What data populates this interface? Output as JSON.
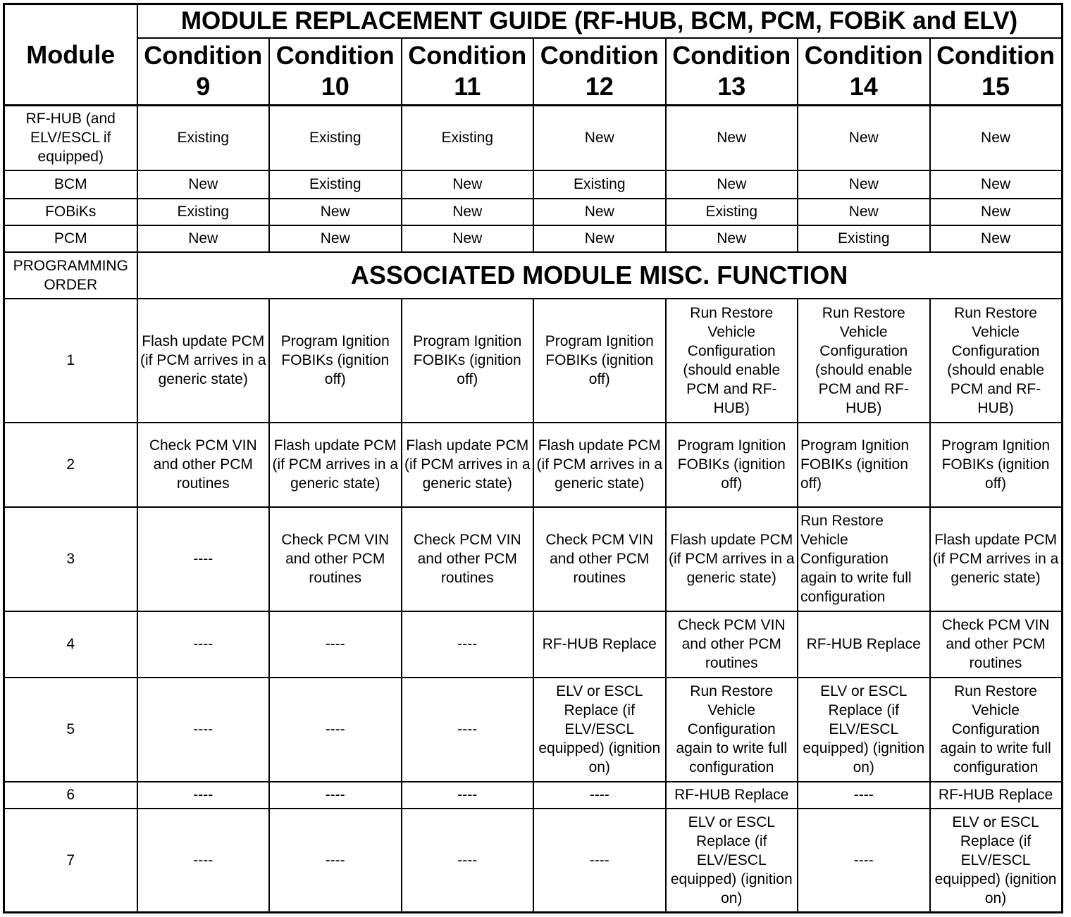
{
  "header": {
    "module_label": "Module",
    "title": "MODULE REPLACEMENT GUIDE (RF-HUB, BCM, PCM, FOBiK and ELV)",
    "conditions": [
      "Condition 9",
      "Condition 10",
      "Condition 11",
      "Condition 12",
      "Condition 13",
      "Condition 14",
      "Condition 15"
    ]
  },
  "modules": [
    {
      "name": "RF-HUB (and ELV/ESCL if equipped)",
      "values": [
        "Existing",
        "Existing",
        "Existing",
        "New",
        "New",
        "New",
        "New"
      ]
    },
    {
      "name": "BCM",
      "values": [
        "New",
        "Existing",
        "New",
        "Existing",
        "New",
        "New",
        "New"
      ]
    },
    {
      "name": "FOBiKs",
      "values": [
        "Existing",
        "New",
        "New",
        "New",
        "Existing",
        "New",
        "New"
      ]
    },
    {
      "name": "PCM",
      "values": [
        "New",
        "New",
        "New",
        "New",
        "New",
        "Existing",
        "New"
      ]
    }
  ],
  "programming_order_label": "PROGRAMMING ORDER",
  "section_title": "ASSOCIATED MODULE MISC. FUNCTION",
  "steps": [
    {
      "order": "1",
      "values": [
        "Flash update PCM (if PCM arrives in a generic state)",
        "Program Ignition FOBIKs (ignition off)",
        "Program Ignition FOBIKs (ignition off)",
        "Program Ignition FOBIKs (ignition off)",
        "Run Restore Vehicle Configuration (should enable PCM and RF-HUB)",
        "Run Restore Vehicle Configuration (should enable PCM and RF-HUB)",
        "Run Restore Vehicle Configuration (should enable PCM and RF-HUB)"
      ]
    },
    {
      "order": "2",
      "values": [
        "Check PCM VIN and other PCM routines",
        "Flash update PCM (if PCM arrives in a generic state)",
        "Flash update PCM (if PCM arrives in a generic state)",
        "Flash update PCM (if PCM arrives in a generic state)",
        "Program Ignition FOBIKs (ignition off)",
        "Program Ignition FOBIKs (ignition off)",
        "Program Ignition FOBIKs (ignition off)"
      ]
    },
    {
      "order": "3",
      "values": [
        "----",
        "Check PCM VIN and other PCM routines",
        "Check PCM VIN and other PCM routines",
        "Check PCM VIN and other PCM routines",
        "Flash update PCM (if PCM arrives in a generic state)",
        "Run Restore Vehicle Configuration again to write full configuration",
        "Flash update PCM (if PCM arrives in a generic state)"
      ]
    },
    {
      "order": "4",
      "values": [
        "----",
        "----",
        "----",
        "RF-HUB Replace",
        "Check PCM VIN and other PCM routines",
        "RF-HUB Replace",
        "Check PCM VIN and other PCM routines"
      ]
    },
    {
      "order": "5",
      "values": [
        "----",
        "----",
        "----",
        "ELV or ESCL Replace (if ELV/ESCL equipped) (ignition on)",
        "Run Restore Vehicle Configuration again to write full configuration",
        "ELV or ESCL Replace (if ELV/ESCL equipped) (ignition on)",
        "Run Restore Vehicle Configuration again to write full configuration"
      ]
    },
    {
      "order": "6",
      "values": [
        "----",
        "----",
        "----",
        "----",
        "RF-HUB Replace",
        "----",
        "RF-HUB Replace"
      ]
    },
    {
      "order": "7",
      "values": [
        "----",
        "----",
        "----",
        "----",
        "ELV or ESCL Replace (if ELV/ESCL equipped) (ignition on)",
        "----",
        "ELV or ESCL Replace (if ELV/ESCL equipped) (ignition on)"
      ]
    }
  ]
}
